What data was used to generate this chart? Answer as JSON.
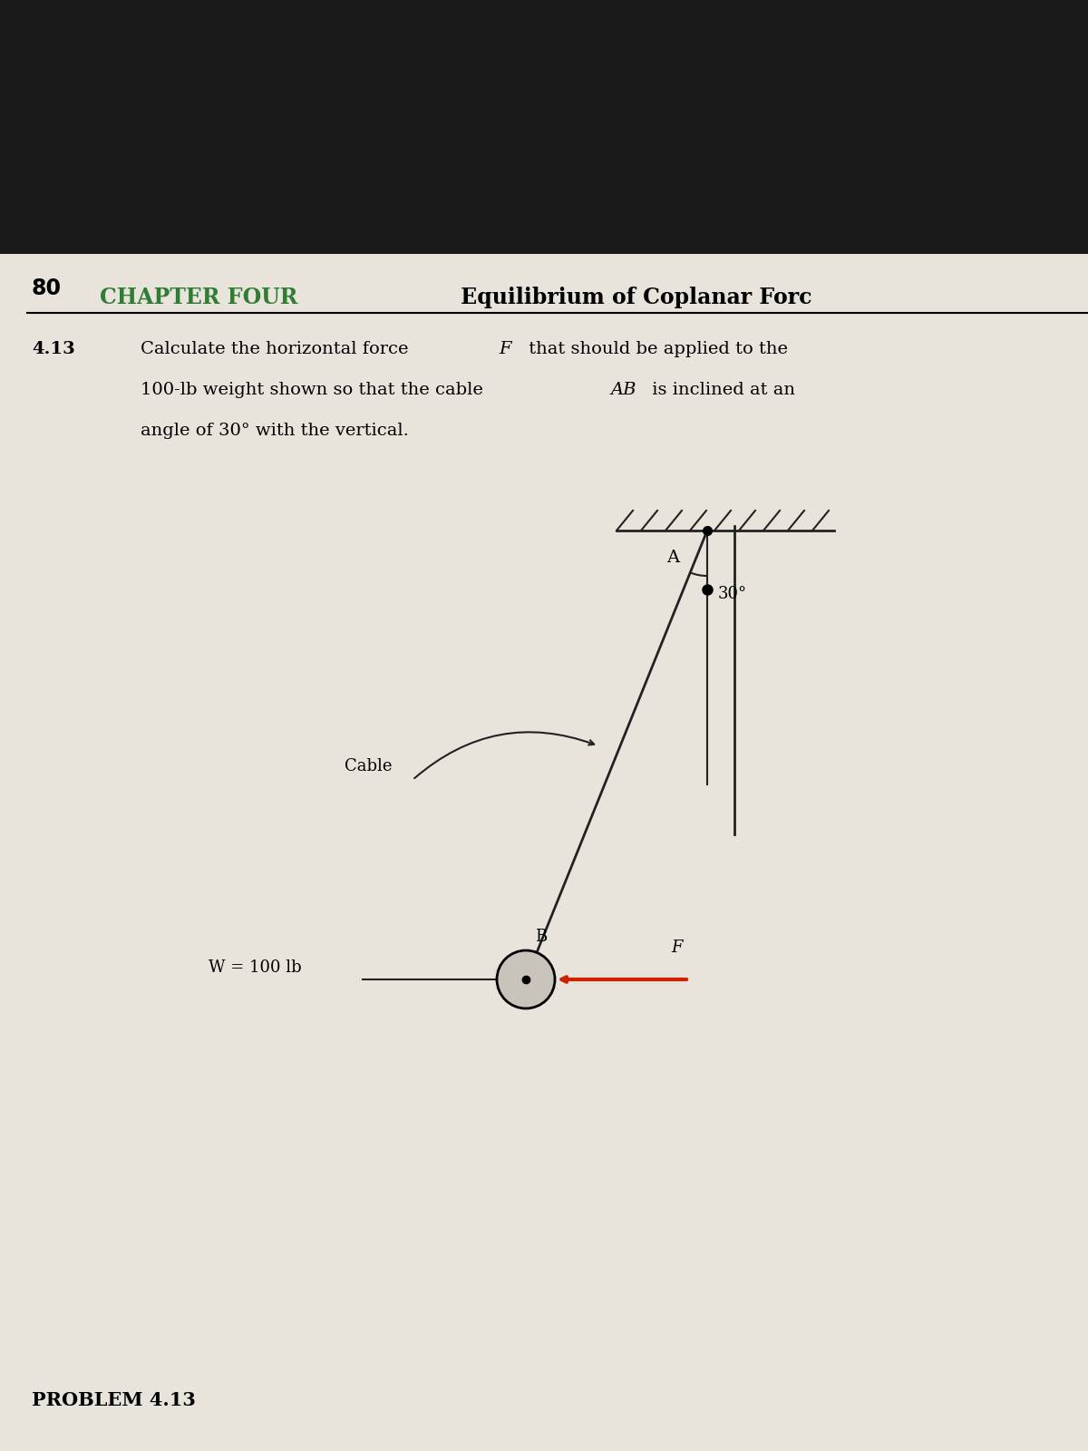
{
  "bg_top": "#1a1a1a",
  "bg_page": "#d8d4cd",
  "page_color": "#e8e4dc",
  "chapter_num": "80",
  "chapter_title_green": "CHAPTER FOUR",
  "chapter_title_black": " Equilibrium of Coplanar Forc",
  "problem_num": "4.13",
  "problem_text_line1": "Calculate the horizontal force ",
  "problem_text_F": "F",
  "problem_text_line1b": " that should be applied to the",
  "problem_text_line2a": "100-lb weight shown so that the cable ",
  "problem_text_AB": "AB",
  "problem_text_line2b": " is inclined at an",
  "problem_text_line3": "angle of 30° with the vertical.",
  "weight_label": "W = 100 lb",
  "cable_label": "Cable",
  "angle_label": "30°",
  "point_A": "A",
  "point_B": "B",
  "force_F": "F",
  "problem_footer": "PROBLEM 4.13",
  "line_color": "#222222",
  "red_arrow_color": "#cc2200",
  "green_color": "#2e7d32",
  "hatch_color": "#222222"
}
